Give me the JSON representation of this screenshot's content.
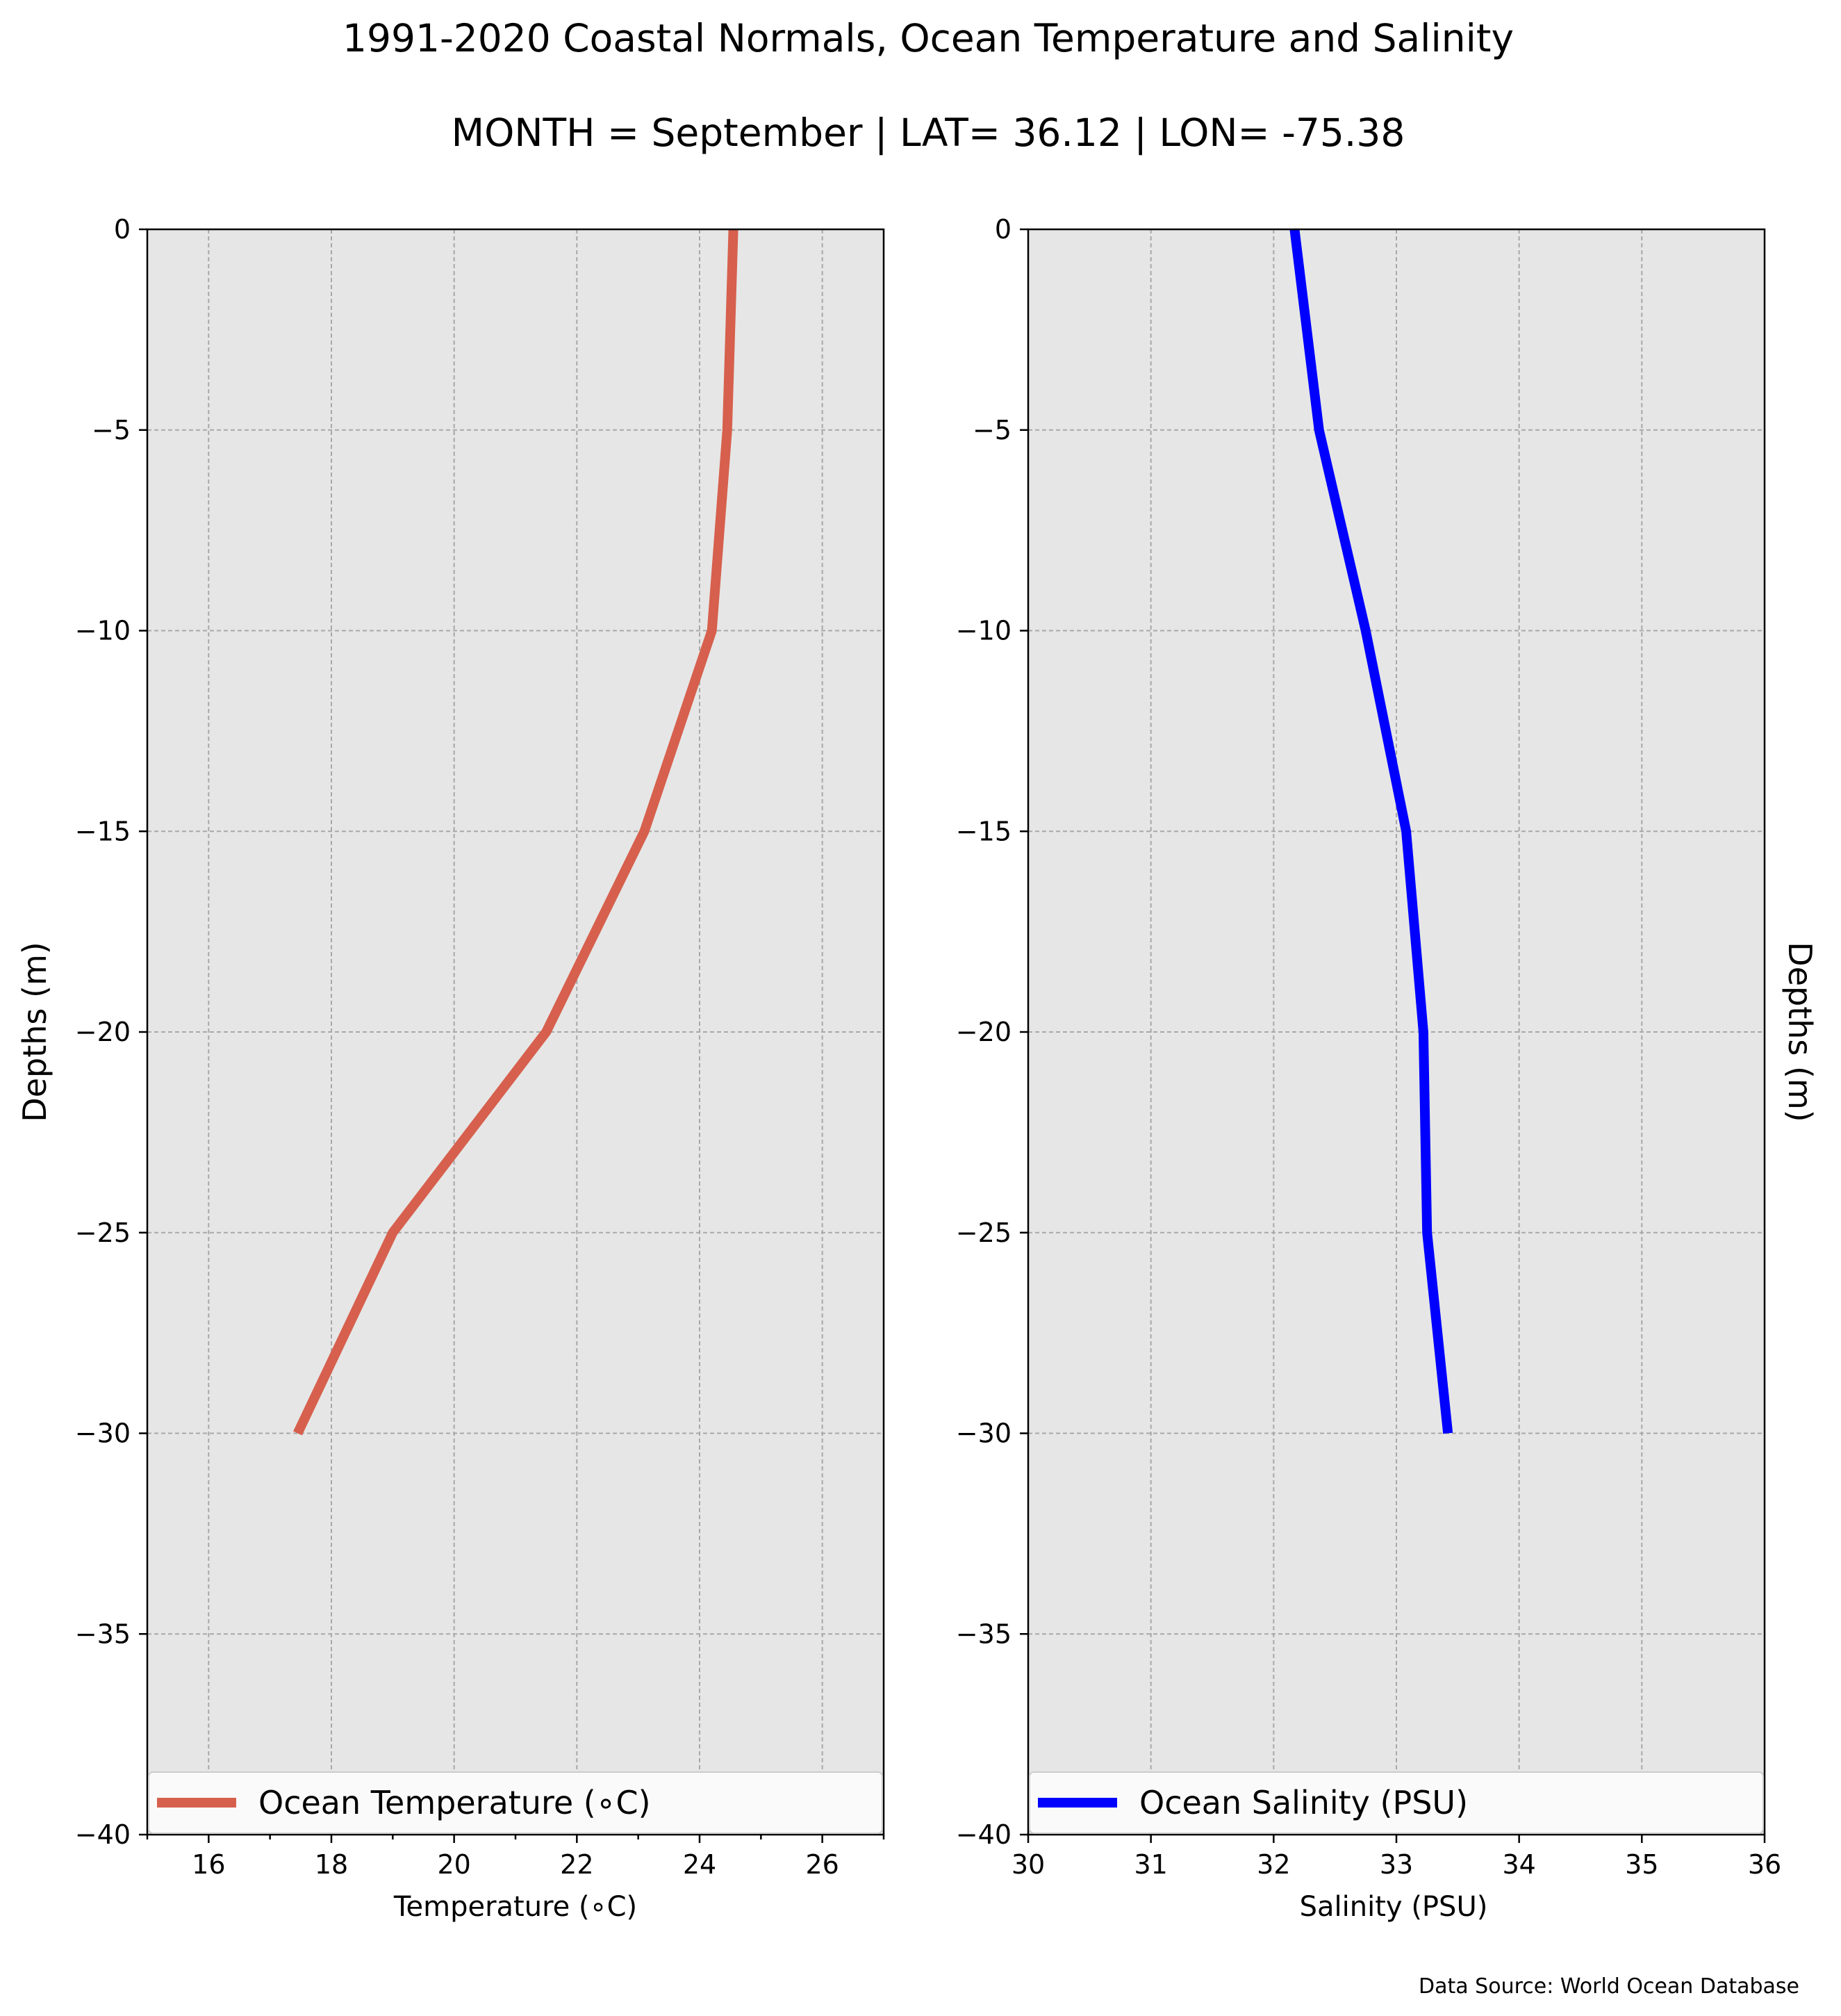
{
  "figure": {
    "title_line1": "1991-2020 Coastal Normals, Ocean Temperature and Salinity",
    "title_line2": "MONTH = September | LAT= 36.12 | LON= -75.38",
    "source": "Data Source: World Ocean Database",
    "background": "#e6e6e6"
  },
  "chart_data": [
    {
      "type": "line",
      "xlabel": "Temperature ($^\\circ$C)",
      "xlabel_display": "Temperature (∘C)",
      "ylabel": "Depths (m)",
      "xlim": [
        15,
        27
      ],
      "ylim": [
        -40,
        0
      ],
      "x_ticks": [
        16,
        18,
        20,
        22,
        24,
        26
      ],
      "x_ticks_minor": [
        15,
        17,
        19,
        21,
        23,
        25,
        27
      ],
      "y_ticks": [
        0,
        -5,
        -10,
        -15,
        -20,
        -25,
        -30,
        -35,
        -40
      ],
      "y_tick_labels": [
        "0",
        "−5",
        "−10",
        "−15",
        "−20",
        "−25",
        "−30",
        "−35",
        "−40"
      ],
      "grid": true,
      "legend_position": "bottom",
      "series": [
        {
          "name": "Ocean Temperature (∘C)",
          "color": "#d6604d",
          "x": [
            24.55,
            24.45,
            24.2,
            23.1,
            21.5,
            19.0,
            17.45
          ],
          "y": [
            0,
            -5,
            -10,
            -15,
            -20,
            -25,
            -30
          ]
        }
      ]
    },
    {
      "type": "line",
      "xlabel": "Salinity (PSU)",
      "ylabel": "Depths (m)",
      "xlim": [
        30,
        36
      ],
      "ylim": [
        -40,
        0
      ],
      "x_ticks": [
        30,
        31,
        32,
        33,
        34,
        35,
        36
      ],
      "y_ticks": [
        0,
        -5,
        -10,
        -15,
        -20,
        -25,
        -30,
        -35,
        -40
      ],
      "y_tick_labels": [
        "0",
        "−5",
        "−10",
        "−15",
        "−20",
        "−25",
        "−30",
        "−35",
        "−40"
      ],
      "grid": true,
      "legend_position": "bottom",
      "series": [
        {
          "name": "Ocean Salinity (PSU)",
          "color": "#0000ff",
          "x": [
            32.17,
            32.37,
            32.75,
            33.08,
            33.22,
            33.25,
            33.42
          ],
          "y": [
            0,
            -5,
            -10,
            -15,
            -20,
            -25,
            -30
          ]
        }
      ]
    }
  ]
}
